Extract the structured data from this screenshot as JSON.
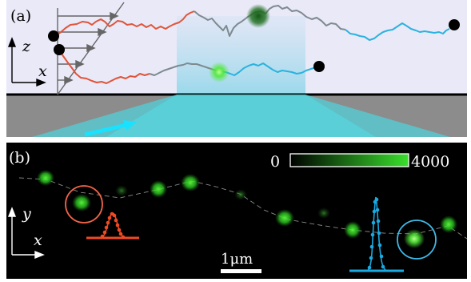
{
  "panel_a": {
    "label": "(a)",
    "axis_z": "z",
    "axis_x": "x"
  },
  "panel_b": {
    "label": "(b)",
    "axis_y": "y",
    "axis_x": "x",
    "colorbar": {
      "min_label": "0",
      "max_label": "4000"
    },
    "scalebar_label": "1μm"
  },
  "colors": {
    "panel_a_bg": "#e9e9f8",
    "substrate": "#8c8c8c",
    "beam": "#4fd3dc",
    "dna_red": "#e0553a",
    "dna_gray": "#7e8a90",
    "dna_blue": "#2ab3de",
    "green_spot": "#37d82a",
    "profile_red": "#f04a22",
    "profile_blue": "#1aa9e0",
    "circle_red": "#f06448",
    "circle_blue": "#3fb9e6",
    "panel_b_bg": "#000000"
  }
}
